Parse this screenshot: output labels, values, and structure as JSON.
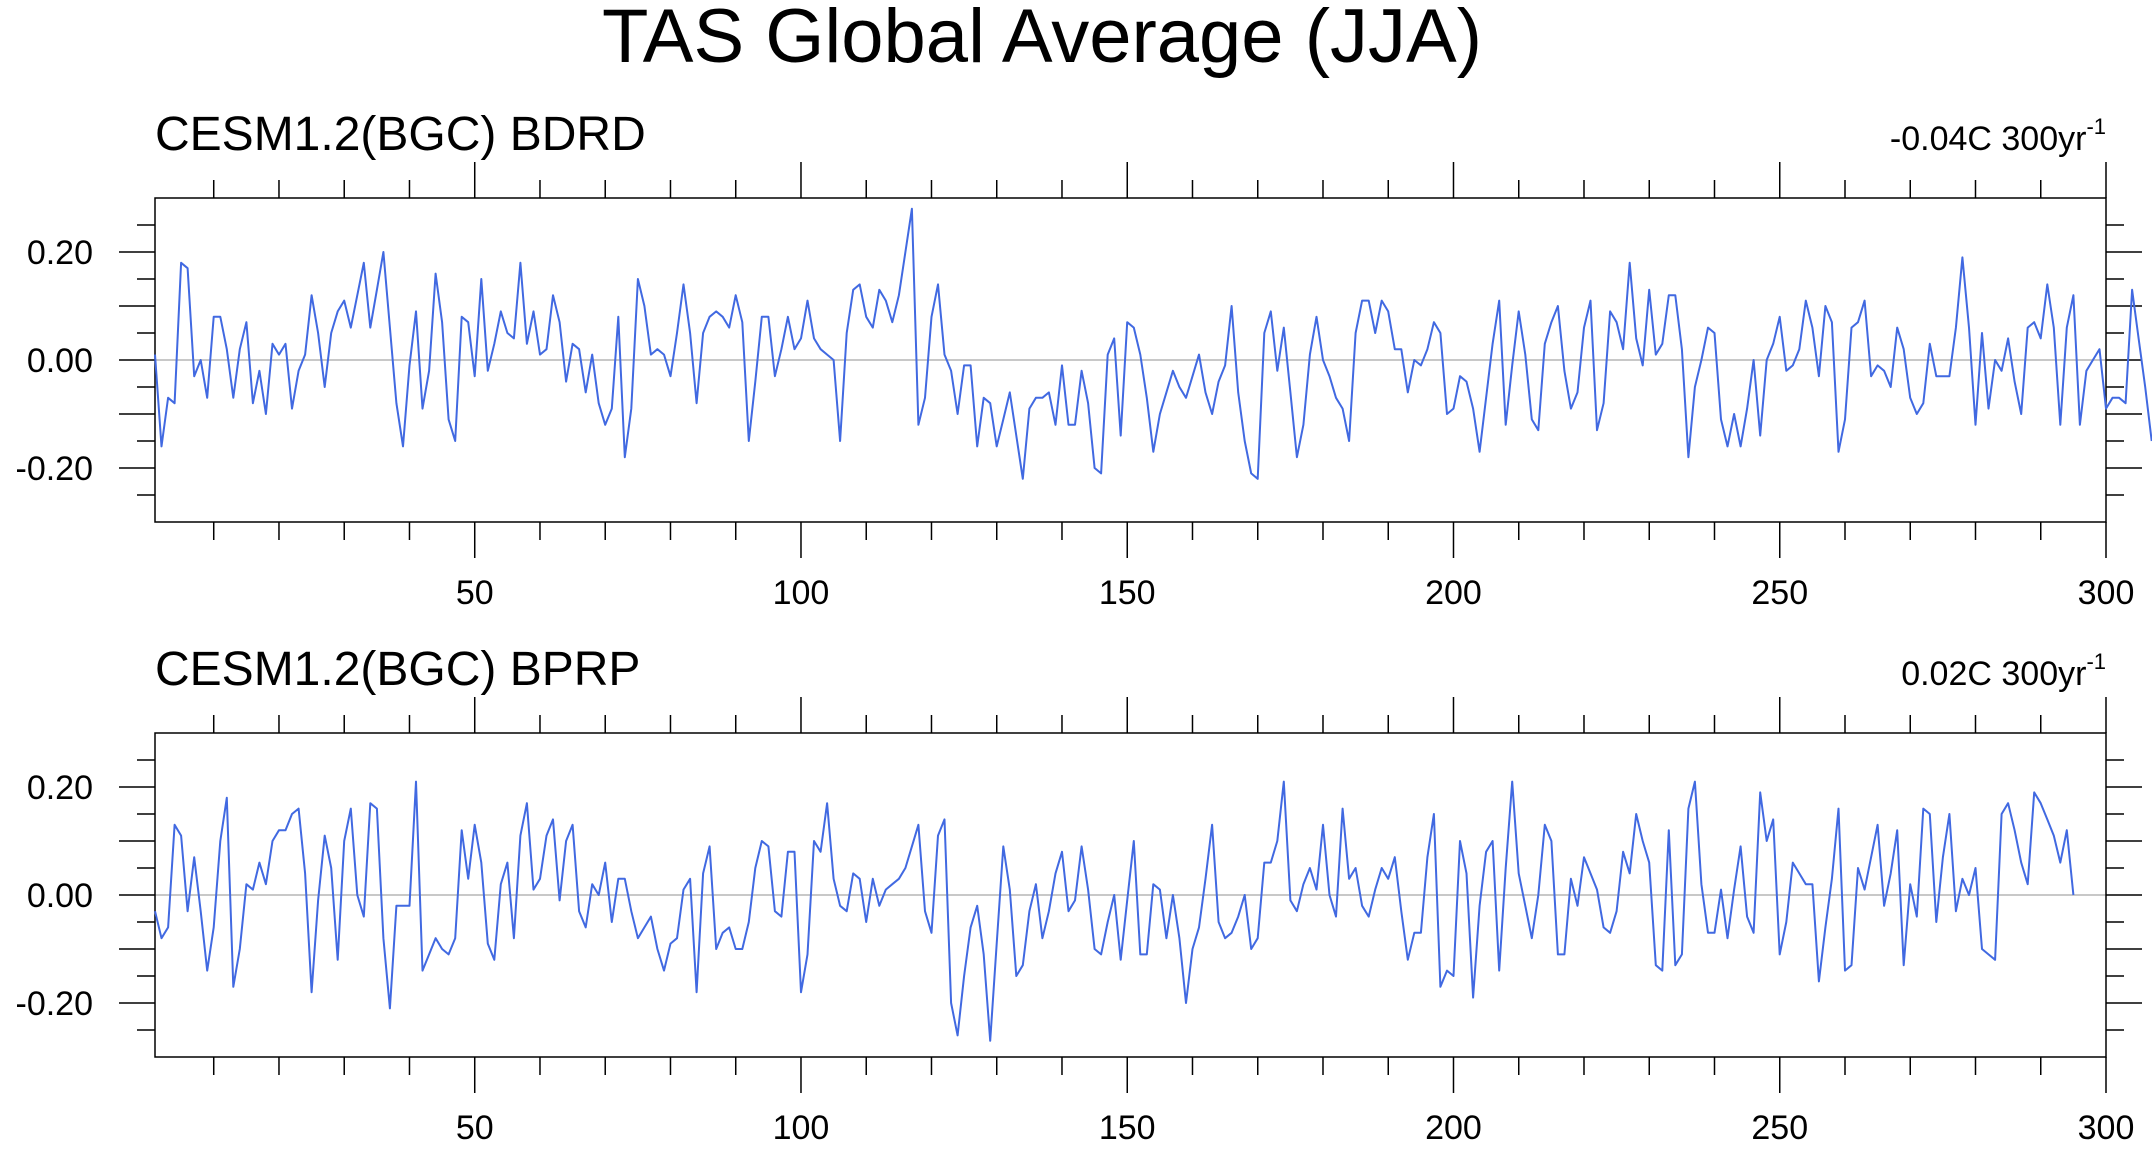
{
  "title": "TAS Global Average (JJA)",
  "chart_data": [
    {
      "type": "line",
      "title": "CESM1.2(BGC) BDRD",
      "trend_label": "-0.04C 300yr",
      "trend_exponent": "-1",
      "xlim": [
        1,
        300
      ],
      "ylim": [
        -0.3,
        0.3
      ],
      "xticks": [
        "50",
        "100",
        "150",
        "200",
        "250",
        "300"
      ],
      "yticks": [
        "0.20",
        "0.00",
        "-0.20"
      ],
      "reference_line": 0,
      "line_color": "#4169e1",
      "values": [
        0.01,
        -0.16,
        -0.07,
        -0.08,
        0.18,
        0.17,
        -0.03,
        0.0,
        -0.07,
        0.08,
        0.08,
        0.02,
        -0.07,
        0.02,
        0.07,
        -0.08,
        -0.02,
        -0.1,
        0.03,
        0.01,
        0.03,
        -0.09,
        -0.02,
        0.01,
        0.12,
        0.05,
        -0.05,
        0.05,
        0.09,
        0.11,
        0.06,
        0.12,
        0.18,
        0.06,
        0.13,
        0.2,
        0.06,
        -0.08,
        -0.16,
        -0.01,
        0.09,
        -0.09,
        -0.02,
        0.16,
        0.07,
        -0.11,
        -0.15,
        0.08,
        0.07,
        -0.03,
        0.15,
        -0.02,
        0.03,
        0.09,
        0.05,
        0.04,
        0.18,
        0.03,
        0.09,
        0.01,
        0.02,
        0.12,
        0.07,
        -0.04,
        0.03,
        0.02,
        -0.06,
        0.01,
        -0.08,
        -0.12,
        -0.09,
        0.08,
        -0.18,
        -0.09,
        0.15,
        0.1,
        0.01,
        0.02,
        0.01,
        -0.03,
        0.05,
        0.14,
        0.05,
        -0.08,
        0.05,
        0.08,
        0.09,
        0.08,
        0.06,
        0.12,
        0.07,
        -0.15,
        -0.04,
        0.08,
        0.08,
        -0.03,
        0.02,
        0.08,
        0.02,
        0.04,
        0.11,
        0.04,
        0.02,
        0.01,
        0.0,
        -0.15,
        0.05,
        0.13,
        0.14,
        0.08,
        0.06,
        0.13,
        0.11,
        0.07,
        0.12,
        0.2,
        0.28,
        -0.12,
        -0.07,
        0.08,
        0.14,
        0.01,
        -0.02,
        -0.1,
        -0.01,
        -0.01,
        -0.16,
        -0.07,
        -0.08,
        -0.16,
        -0.11,
        -0.06,
        -0.14,
        -0.22,
        -0.09,
        -0.07,
        -0.07,
        -0.06,
        -0.12,
        -0.01,
        -0.12,
        -0.12,
        -0.02,
        -0.08,
        -0.2,
        -0.21,
        0.01,
        0.04,
        -0.14,
        0.07,
        0.06,
        0.01,
        -0.07,
        -0.17,
        -0.1,
        -0.06,
        -0.02,
        -0.05,
        -0.07,
        -0.03,
        0.01,
        -0.06,
        -0.1,
        -0.04,
        -0.01,
        0.1,
        -0.06,
        -0.15,
        -0.21,
        -0.22,
        0.05,
        0.09,
        -0.02,
        0.06,
        -0.06,
        -0.18,
        -0.12,
        0.01,
        0.08,
        0.0,
        -0.03,
        -0.07,
        -0.09,
        -0.15,
        0.05,
        0.11,
        0.11,
        0.05,
        0.11,
        0.09,
        0.02,
        0.02,
        -0.06,
        0.0,
        -0.01,
        0.02,
        0.07,
        0.05,
        -0.1,
        -0.09,
        -0.03,
        -0.04,
        -0.09,
        -0.17,
        -0.07,
        0.03,
        0.11,
        -0.12,
        -0.01,
        0.09,
        0.01,
        -0.11,
        -0.13,
        0.03,
        0.07,
        0.1,
        -0.02,
        -0.09,
        -0.06,
        0.06,
        0.11,
        -0.13,
        -0.08,
        0.09,
        0.07,
        0.02,
        0.18,
        0.04,
        -0.01,
        0.13,
        0.01,
        0.03,
        0.12,
        0.12,
        0.02,
        -0.18,
        -0.05,
        0.0,
        0.06,
        0.05,
        -0.11,
        -0.16,
        -0.1,
        -0.16,
        -0.09,
        0.0,
        -0.14,
        0.0,
        0.03,
        0.08,
        -0.02,
        -0.01,
        0.02,
        0.11,
        0.06,
        -0.03,
        0.1,
        0.07,
        -0.17,
        -0.11,
        0.06,
        0.07,
        0.11,
        -0.03,
        -0.01,
        -0.02,
        -0.05,
        0.06,
        0.02,
        -0.07,
        -0.1,
        -0.08,
        0.03,
        -0.03,
        -0.03,
        -0.03,
        0.06,
        0.19,
        0.06,
        -0.12,
        0.05,
        -0.09,
        0.0,
        -0.02,
        0.04,
        -0.04,
        -0.1,
        0.06,
        0.07,
        0.04,
        0.14,
        0.06,
        -0.12,
        0.06,
        0.12,
        -0.12,
        -0.02,
        0.0,
        0.02,
        -0.09,
        -0.07,
        -0.07,
        -0.08,
        0.13,
        0.04,
        -0.05,
        -0.15
      ]
    },
    {
      "type": "line",
      "title": "CESM1.2(BGC) BPRP",
      "trend_label": "0.02C 300yr",
      "trend_exponent": "-1",
      "xlim": [
        1,
        300
      ],
      "ylim": [
        -0.3,
        0.3
      ],
      "xticks": [
        "50",
        "100",
        "150",
        "200",
        "250",
        "300"
      ],
      "yticks": [
        "0.20",
        "0.00",
        "-0.20"
      ],
      "reference_line": 0,
      "line_color": "#4169e1",
      "values": [
        -0.03,
        -0.08,
        -0.06,
        0.13,
        0.11,
        -0.03,
        0.07,
        -0.03,
        -0.14,
        -0.06,
        0.1,
        0.18,
        -0.17,
        -0.1,
        0.02,
        0.01,
        0.06,
        0.02,
        0.1,
        0.12,
        0.12,
        0.15,
        0.16,
        0.04,
        -0.18,
        -0.01,
        0.11,
        0.05,
        -0.12,
        0.1,
        0.16,
        0.0,
        -0.04,
        0.17,
        0.16,
        -0.08,
        -0.21,
        -0.02,
        -0.02,
        -0.02,
        0.21,
        -0.14,
        -0.11,
        -0.08,
        -0.1,
        -0.11,
        -0.08,
        0.12,
        0.03,
        0.13,
        0.06,
        -0.09,
        -0.12,
        0.02,
        0.06,
        -0.08,
        0.11,
        0.17,
        0.01,
        0.03,
        0.11,
        0.14,
        -0.01,
        0.1,
        0.13,
        -0.03,
        -0.06,
        0.02,
        0.0,
        0.06,
        -0.05,
        0.03,
        0.03,
        -0.03,
        -0.08,
        -0.06,
        -0.04,
        -0.1,
        -0.14,
        -0.09,
        -0.08,
        0.01,
        0.03,
        -0.18,
        0.04,
        0.09,
        -0.1,
        -0.07,
        -0.06,
        -0.1,
        -0.1,
        -0.05,
        0.05,
        0.1,
        0.09,
        -0.03,
        -0.04,
        0.08,
        0.08,
        -0.18,
        -0.11,
        0.1,
        0.08,
        0.17,
        0.03,
        -0.02,
        -0.03,
        0.04,
        0.03,
        -0.05,
        0.03,
        -0.02,
        0.01,
        0.02,
        0.03,
        0.05,
        0.09,
        0.13,
        -0.03,
        -0.07,
        0.11,
        0.14,
        -0.2,
        -0.26,
        -0.15,
        -0.06,
        -0.02,
        -0.11,
        -0.27,
        -0.09,
        0.09,
        0.01,
        -0.15,
        -0.13,
        -0.03,
        0.02,
        -0.08,
        -0.03,
        0.04,
        0.08,
        -0.03,
        -0.01,
        0.09,
        0.01,
        -0.1,
        -0.11,
        -0.05,
        0.0,
        -0.12,
        -0.01,
        0.1,
        -0.11,
        -0.11,
        0.02,
        0.01,
        -0.08,
        0.0,
        -0.08,
        -0.2,
        -0.1,
        -0.06,
        0.03,
        0.13,
        -0.05,
        -0.08,
        -0.07,
        -0.04,
        0.0,
        -0.1,
        -0.08,
        0.06,
        0.06,
        0.1,
        0.21,
        -0.01,
        -0.03,
        0.02,
        0.05,
        0.01,
        0.13,
        0.0,
        -0.04,
        0.16,
        0.03,
        0.05,
        -0.02,
        -0.04,
        0.01,
        0.05,
        0.03,
        0.07,
        -0.03,
        -0.12,
        -0.07,
        -0.07,
        0.07,
        0.15,
        -0.17,
        -0.14,
        -0.15,
        0.1,
        0.04,
        -0.19,
        -0.02,
        0.08,
        0.1,
        -0.14,
        0.05,
        0.21,
        0.04,
        -0.02,
        -0.08,
        0.0,
        0.13,
        0.1,
        -0.11,
        -0.11,
        0.03,
        -0.02,
        0.07,
        0.04,
        0.01,
        -0.06,
        -0.07,
        -0.03,
        0.08,
        0.04,
        0.15,
        0.1,
        0.06,
        -0.13,
        -0.14,
        0.12,
        -0.13,
        -0.11,
        0.16,
        0.21,
        0.02,
        -0.07,
        -0.07,
        0.01,
        -0.08,
        0.01,
        0.09,
        -0.04,
        -0.07,
        0.19,
        0.1,
        0.14,
        -0.11,
        -0.05,
        0.06,
        0.04,
        0.02,
        0.02,
        -0.16,
        -0.06,
        0.03,
        0.16,
        -0.14,
        -0.13,
        0.05,
        0.01,
        0.07,
        0.13,
        -0.02,
        0.04,
        0.12,
        -0.13,
        0.02,
        -0.04,
        0.16,
        0.15,
        -0.05,
        0.07,
        0.15,
        -0.03,
        0.03,
        0.0,
        0.05,
        -0.1,
        -0.11,
        -0.12,
        0.15,
        0.17,
        0.12,
        0.06,
        0.02,
        0.19,
        0.17,
        0.14,
        0.11,
        0.06,
        0.12,
        0.0
      ]
    }
  ]
}
